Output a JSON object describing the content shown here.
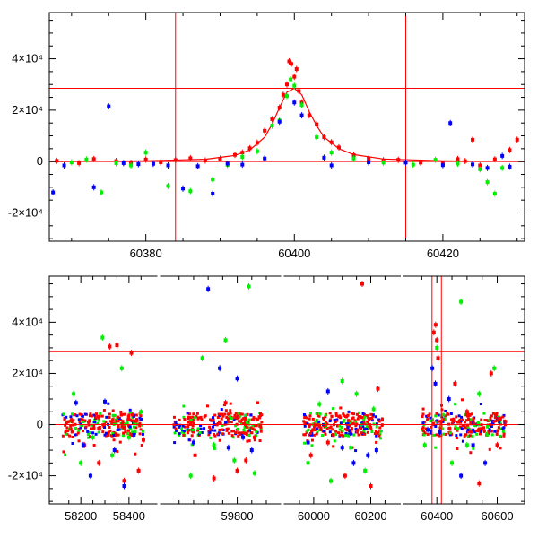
{
  "colors": {
    "frame": "#000000",
    "fit": "#ff0000",
    "series_red": "#ff0000",
    "series_green": "#00ee00",
    "series_blue": "#0000ff"
  },
  "chart_data": [
    {
      "type": "scatter",
      "xlim": [
        60367,
        60431
      ],
      "ylim": [
        -31000,
        58000
      ],
      "xticks": [
        60380,
        60400,
        60420
      ],
      "xtick_labels": [
        "60380",
        "60400",
        "60420"
      ],
      "yticks": [
        -20000,
        0,
        20000,
        40000
      ],
      "ytick_labels": [
        "-2×10⁴",
        "0",
        "2×10⁴",
        "4×10⁴"
      ],
      "hlines": [
        0,
        28500
      ],
      "vlines": [
        60384,
        60415
      ],
      "grid": false,
      "fit": {
        "x": [
          60367,
          60380,
          60388,
          60392,
          60394,
          60396,
          60397,
          60398,
          60399,
          60400,
          60401,
          60402,
          60403,
          60404,
          60406,
          60408,
          60412,
          60420,
          60431
        ],
        "y": [
          0,
          300,
          900,
          2400,
          4500,
          9500,
          14500,
          21000,
          27000,
          28500,
          26000,
          19500,
          14000,
          9500,
          5000,
          2700,
          1000,
          300,
          0
        ]
      },
      "series": [
        {
          "color": "red",
          "x": [
            60368,
            60371,
            60373,
            60376,
            60378,
            60380,
            60382,
            60384,
            60386,
            60388,
            60390,
            60392,
            60393,
            60394,
            60395,
            60396,
            60397,
            60398,
            60398.5,
            60399,
            60399.3,
            60399.6,
            60400,
            60400.3,
            60400.6,
            60401,
            60402,
            60403,
            60404,
            60405,
            60406,
            60408,
            60410,
            60412,
            60414,
            60417,
            60420,
            60422,
            60423,
            60424,
            60425,
            60427,
            60429,
            60430
          ],
          "y": [
            300,
            -600,
            1000,
            200,
            -500,
            800,
            -300,
            600,
            1300,
            400,
            1100,
            2600,
            3500,
            5200,
            7300,
            12000,
            16500,
            21000,
            26000,
            30000,
            39000,
            38000,
            33000,
            36000,
            27500,
            23000,
            18000,
            14500,
            9500,
            7500,
            5500,
            2500,
            1100,
            500,
            700,
            -400,
            -800,
            1000,
            200,
            8500,
            -1500,
            900,
            4500,
            8500
          ]
        },
        {
          "color": "green",
          "x": [
            60370,
            60372,
            60374,
            60376,
            60378,
            60380,
            60383,
            60386,
            60389,
            60391,
            60393,
            60395,
            60397,
            60398,
            60399,
            60399.5,
            60400,
            60401,
            60403,
            60405,
            60408,
            60412,
            60416,
            60419,
            60422,
            60425,
            60426,
            60427,
            60428
          ],
          "y": [
            -300,
            800,
            -12000,
            -600,
            -1500,
            3500,
            -9500,
            -11500,
            -7000,
            -1300,
            1800,
            4000,
            14000,
            16000,
            25500,
            32000,
            29500,
            22000,
            9500,
            3500,
            1200,
            -400,
            -1200,
            700,
            -800,
            -3000,
            -8000,
            -12500,
            -2500
          ]
        },
        {
          "color": "blue",
          "x": [
            60367.5,
            60369,
            60373,
            60375,
            60377,
            60379,
            60381,
            60383,
            60385,
            60387,
            60389,
            60391,
            60393,
            60396,
            60398,
            60400,
            60401,
            60404,
            60405,
            60410,
            60415,
            60420,
            60421,
            60424,
            60426,
            60428,
            60429
          ],
          "y": [
            -12000,
            -1500,
            -10000,
            21500,
            -600,
            -1000,
            -900,
            -1500,
            -10500,
            -1800,
            -12500,
            -800,
            -1200,
            1200,
            15500,
            23000,
            18000,
            1500,
            -1500,
            -300,
            -400,
            -1400,
            15000,
            -1100,
            -2500,
            2200,
            -2000
          ]
        }
      ]
    },
    {
      "type": "scatter",
      "xlim": [
        58110,
        60640
      ],
      "ylim": [
        -31000,
        58000
      ],
      "broken_axis": true,
      "segments": [
        [
          58110,
          58475
        ],
        [
          59570,
          59900
        ],
        [
          59950,
          60255
        ],
        [
          60340,
          60640
        ]
      ],
      "xticks": [
        58200,
        58400,
        59800,
        60000,
        60200,
        60400,
        60600
      ],
      "xtick_labels": [
        "58200",
        "58400",
        "59800",
        "60000",
        "60200",
        "60400",
        "60600"
      ],
      "yticks": [
        -20000,
        0,
        20000,
        40000
      ],
      "ytick_labels": [
        "-2×10⁴",
        "0",
        "2×10⁴",
        "4×10⁴"
      ],
      "hlines": [
        0,
        28500
      ],
      "vlines": [
        60384,
        60415
      ],
      "grid": false,
      "series": [
        {
          "color": "red",
          "x": [
            58215,
            58275,
            58320,
            58350,
            58380,
            58410,
            58440,
            58460,
            59655,
            59720,
            59760,
            59800,
            59830,
            59860,
            59990,
            60050,
            60110,
            60170,
            60200,
            60225,
            60390,
            60396,
            60400,
            60404,
            60460,
            60500,
            60540,
            60580,
            60600
          ],
          "y": [
            -8000,
            -15000,
            30500,
            31000,
            -22000,
            28000,
            -18000,
            -6000,
            -12000,
            -21000,
            8500,
            -18000,
            -14000,
            -5000,
            -12000,
            -7000,
            -20000,
            55000,
            -24000,
            14000,
            36000,
            39000,
            33000,
            26000,
            16000,
            5000,
            -23000,
            20000,
            -8000
          ]
        },
        {
          "color": "green",
          "x": [
            58170,
            58200,
            58250,
            58290,
            58330,
            58370,
            58400,
            58450,
            59640,
            59680,
            59720,
            59760,
            59790,
            59840,
            59860,
            59980,
            60020,
            60060,
            60100,
            60130,
            60150,
            60180,
            60210,
            60360,
            60400,
            60450,
            60480,
            60500,
            60540,
            60590
          ],
          "y": [
            12000,
            -15000,
            -5000,
            34000,
            -12000,
            22000,
            -5000,
            5000,
            -20000,
            26000,
            -8000,
            33000,
            -14000,
            54000,
            -19000,
            -15000,
            8000,
            -22000,
            17000,
            -9000,
            12000,
            -18000,
            6000,
            -8000,
            30000,
            -15000,
            48000,
            -8000,
            12000,
            22000
          ]
        },
        {
          "color": "blue",
          "x": [
            58180,
            58210,
            58240,
            58300,
            58340,
            58380,
            58420,
            59650,
            59700,
            59740,
            59770,
            59800,
            59820,
            59850,
            59980,
            60050,
            60100,
            60140,
            60190,
            60220,
            60370,
            60385,
            60395,
            60410,
            60440,
            60480,
            60520,
            60560
          ],
          "y": [
            8500,
            -8000,
            -20000,
            9000,
            -10000,
            -24000,
            -4000,
            -7000,
            53000,
            22000,
            -9000,
            18000,
            -5000,
            -10000,
            -7000,
            13000,
            -9000,
            -15000,
            -12000,
            -10000,
            -2000,
            22000,
            16000,
            -3000,
            10000,
            -20000,
            -8000,
            -15000
          ]
        }
      ]
    }
  ]
}
